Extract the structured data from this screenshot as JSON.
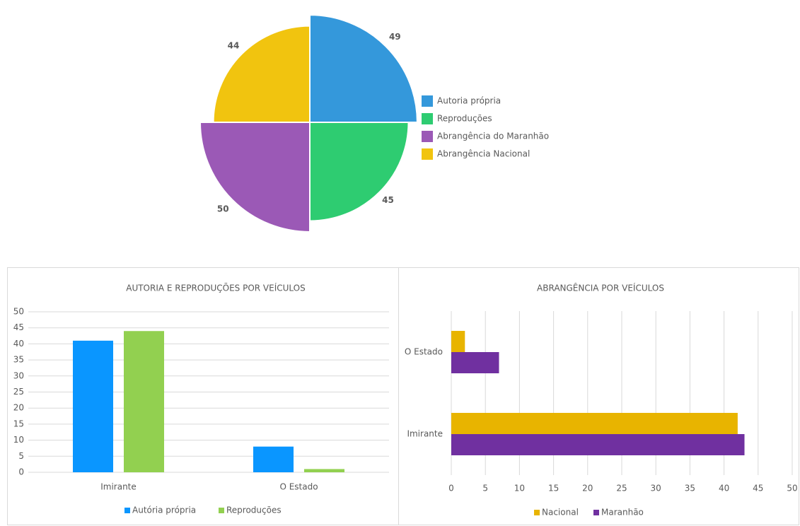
{
  "chart_data": [
    {
      "type": "polarArea",
      "categories": [
        "Autoria própria",
        "Reproduções",
        "Abrangência do Maranhão",
        "Abrangência Nacional"
      ],
      "values": [
        49,
        45,
        50,
        44
      ],
      "colors": [
        "#3498db",
        "#2ecc71",
        "#9b59b6",
        "#f1c40f"
      ],
      "legend": "right"
    },
    {
      "type": "bar",
      "title": "AUTORIA E REPRODUÇÕES POR VEÍCULOS",
      "categories": [
        "Imirante",
        "O Estado"
      ],
      "series": [
        {
          "name": "Autória própria",
          "color": "#0a96ff",
          "values": [
            41,
            8
          ]
        },
        {
          "name": "Reproduções",
          "color": "#92d050",
          "values": [
            44,
            1
          ]
        }
      ],
      "ylim": [
        0,
        50
      ],
      "yticks": [
        0,
        5,
        10,
        15,
        20,
        25,
        30,
        35,
        40,
        45,
        50
      ],
      "grid": true,
      "legend": "bottom"
    },
    {
      "type": "barh",
      "title": "ABRANGÊNCIA POR VEÍCULOS",
      "categories": [
        "O Estado",
        "Imirante"
      ],
      "series": [
        {
          "name": "Nacional",
          "color": "#e8b400",
          "values": [
            2,
            42
          ]
        },
        {
          "name": "Maranhão",
          "color": "#7030a0",
          "values": [
            7,
            43
          ]
        }
      ],
      "xlim": [
        0,
        50
      ],
      "xticks": [
        0,
        5,
        10,
        15,
        20,
        25,
        30,
        35,
        40,
        45,
        50
      ],
      "grid": true,
      "legend": "bottom"
    }
  ]
}
